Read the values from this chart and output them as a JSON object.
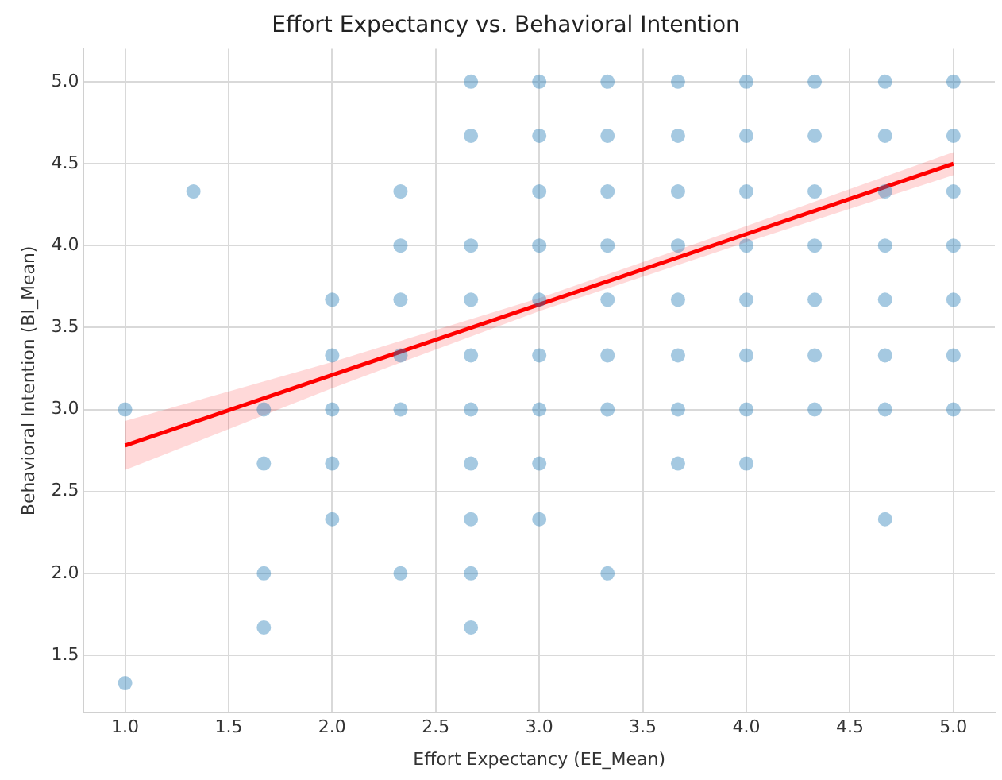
{
  "chart_data": {
    "type": "scatter",
    "title": "Effort Expectancy vs. Behavioral Intention",
    "xlabel": "Effort Expectancy (EE_Mean)",
    "ylabel": "Behavioral Intention (BI_Mean)",
    "xlim": [
      0.8,
      5.2
    ],
    "xticks": [
      {
        "value": 1,
        "label": "1.0"
      },
      1.5,
      {
        "value": 2,
        "label": "2.0"
      },
      2.5,
      {
        "value": 3,
        "label": "3.0"
      },
      3.5,
      {
        "value": 4,
        "label": "4.0"
      },
      4.5,
      {
        "value": 5,
        "label": "5.0"
      }
    ],
    "ylim": [
      1.15,
      5.2
    ],
    "yticks": [
      1.5,
      {
        "value": 2,
        "label": "2.0"
      },
      2.5,
      {
        "value": 3,
        "label": "3.0"
      },
      3.5,
      {
        "value": 4,
        "label": "4.0"
      },
      4.5,
      {
        "value": 5,
        "label": "5.0"
      }
    ],
    "grid": true,
    "series": [
      {
        "color": "#1f77b4",
        "marker": "circle",
        "x": [
          2.67,
          3,
          3.33,
          3.67,
          4,
          4.33,
          4.67,
          5,
          2.67,
          3,
          3.33,
          3.67,
          4,
          4.33,
          4.67,
          5,
          1.33,
          2.33,
          3,
          3.33,
          3.67,
          4,
          4.33,
          4.67,
          5,
          2.33,
          2.67,
          3,
          3.33,
          3.67,
          4,
          4.33,
          4.67,
          5,
          2,
          2.33,
          2.67,
          3,
          3.33,
          3.67,
          4,
          4.33,
          4.67,
          5,
          2,
          2.33,
          2.67,
          3,
          3.33,
          3.67,
          4,
          4.33,
          4.67,
          5,
          1,
          1.67,
          2,
          2.33,
          2.67,
          3,
          3.33,
          3.67,
          4,
          4.33,
          4.67,
          5,
          1.67,
          2,
          2.67,
          3,
          3.67,
          4,
          2,
          2.67,
          3,
          4.67,
          1.67,
          2.33,
          2.67,
          3.33,
          1.67,
          2.67,
          1
        ],
        "values": [
          5,
          5,
          5,
          5,
          5,
          5,
          5,
          5,
          4.67,
          4.67,
          4.67,
          4.67,
          4.67,
          4.67,
          4.67,
          4.67,
          4.33,
          4.33,
          4.33,
          4.33,
          4.33,
          4.33,
          4.33,
          4.33,
          4.33,
          4,
          4,
          4,
          4,
          4,
          4,
          4,
          4,
          4,
          3.67,
          3.67,
          3.67,
          3.67,
          3.67,
          3.67,
          3.67,
          3.67,
          3.67,
          3.67,
          3.33,
          3.33,
          3.33,
          3.33,
          3.33,
          3.33,
          3.33,
          3.33,
          3.33,
          3.33,
          3,
          3,
          3,
          3,
          3,
          3,
          3,
          3,
          3,
          3,
          3,
          3,
          2.67,
          2.67,
          2.67,
          2.67,
          2.67,
          2.67,
          2.33,
          2.33,
          2.33,
          2.33,
          2,
          2,
          2,
          2,
          1.67,
          1.67,
          1.33
        ]
      },
      {
        "type": "line",
        "color": "#ff0000",
        "marker": "none",
        "x": [
          1,
          2,
          3,
          4,
          5
        ],
        "values": [
          2.78,
          3.21,
          3.64,
          4.07,
          4.5
        ],
        "lower": [
          2.63,
          3.13,
          3.6,
          4.02,
          4.43
        ],
        "upper": [
          2.93,
          3.29,
          3.68,
          4.12,
          4.57
        ]
      }
    ]
  }
}
